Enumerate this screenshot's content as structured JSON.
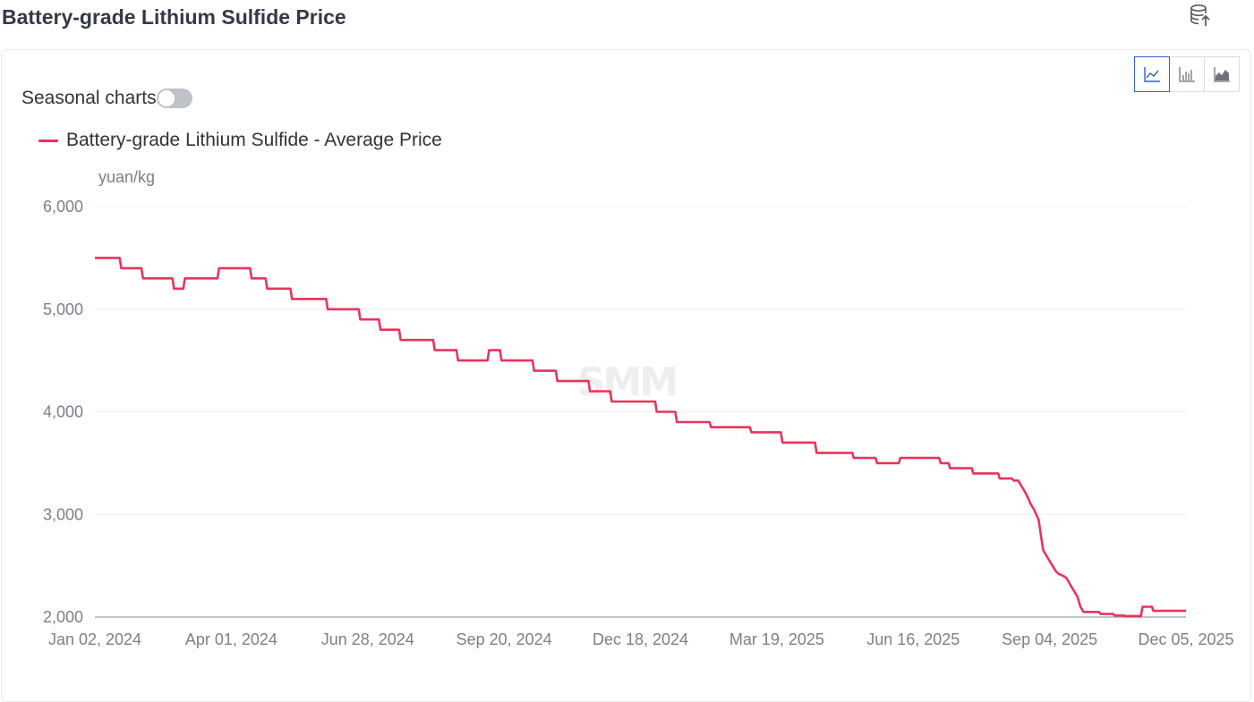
{
  "header": {
    "title": "Battery-grade Lithium Sulfide Price",
    "export_icon": "database-export-icon"
  },
  "toolbar": {
    "seasonal_label": "Seasonal charts",
    "seasonal_on": false,
    "chart_types": [
      {
        "icon": "line-chart-icon",
        "active": true
      },
      {
        "icon": "bar-chart-icon",
        "active": false
      },
      {
        "icon": "area-chart-icon",
        "active": false
      }
    ]
  },
  "colors": {
    "series": "#e8345c",
    "active_border": "#2e62c9",
    "axis_text": "#7b8087",
    "grid": "#ececec"
  },
  "watermark": "SMM",
  "chart_data": {
    "type": "line",
    "unit": "yuan/kg",
    "ylim": [
      2000,
      6000
    ],
    "yticks": [
      2000,
      3000,
      4000,
      5000,
      6000
    ],
    "ytick_labels": [
      "2,000",
      "3,000",
      "4,000",
      "5,000",
      "6,000"
    ],
    "xtick_labels": [
      "Jan 02, 2024",
      "Apr 01, 2024",
      "Jun 28, 2024",
      "Sep 20, 2024",
      "Dec 18, 2024",
      "Mar 19, 2025",
      "Jun 16, 2025",
      "Sep 04, 2025",
      "Dec 05, 2025"
    ],
    "grid": true,
    "legend_position": "top-left",
    "series": [
      {
        "name": "Battery-grade Lithium Sulfide - Average Price",
        "points": [
          [
            "2024-01-02",
            5500
          ],
          [
            "2024-01-18",
            5500
          ],
          [
            "2024-01-19",
            5400
          ],
          [
            "2024-02-01",
            5400
          ],
          [
            "2024-02-02",
            5300
          ],
          [
            "2024-02-21",
            5300
          ],
          [
            "2024-02-22",
            5200
          ],
          [
            "2024-02-28",
            5200
          ],
          [
            "2024-02-29",
            5300
          ],
          [
            "2024-03-21",
            5300
          ],
          [
            "2024-03-22",
            5400
          ],
          [
            "2024-04-11",
            5400
          ],
          [
            "2024-04-12",
            5300
          ],
          [
            "2024-04-21",
            5300
          ],
          [
            "2024-04-22",
            5200
          ],
          [
            "2024-05-07",
            5200
          ],
          [
            "2024-05-08",
            5100
          ],
          [
            "2024-05-30",
            5100
          ],
          [
            "2024-05-31",
            5000
          ],
          [
            "2024-06-20",
            5000
          ],
          [
            "2024-06-21",
            4900
          ],
          [
            "2024-07-03",
            4900
          ],
          [
            "2024-07-04",
            4800
          ],
          [
            "2024-07-16",
            4800
          ],
          [
            "2024-07-17",
            4700
          ],
          [
            "2024-08-07",
            4700
          ],
          [
            "2024-08-08",
            4600
          ],
          [
            "2024-08-22",
            4600
          ],
          [
            "2024-08-23",
            4500
          ],
          [
            "2024-09-11",
            4500
          ],
          [
            "2024-09-12",
            4600
          ],
          [
            "2024-09-19",
            4600
          ],
          [
            "2024-09-20",
            4500
          ],
          [
            "2024-10-10",
            4500
          ],
          [
            "2024-10-11",
            4400
          ],
          [
            "2024-10-25",
            4400
          ],
          [
            "2024-10-26",
            4300
          ],
          [
            "2024-11-15",
            4300
          ],
          [
            "2024-11-16",
            4200
          ],
          [
            "2024-11-29",
            4200
          ],
          [
            "2024-11-30",
            4100
          ],
          [
            "2024-12-28",
            4100
          ],
          [
            "2024-12-29",
            4000
          ],
          [
            "2025-01-10",
            4000
          ],
          [
            "2025-01-11",
            3900
          ],
          [
            "2025-02-01",
            3900
          ],
          [
            "2025-02-02",
            3850
          ],
          [
            "2025-02-27",
            3850
          ],
          [
            "2025-02-28",
            3800
          ],
          [
            "2025-03-19",
            3800
          ],
          [
            "2025-03-20",
            3700
          ],
          [
            "2025-04-10",
            3700
          ],
          [
            "2025-04-11",
            3600
          ],
          [
            "2025-05-04",
            3600
          ],
          [
            "2025-05-05",
            3550
          ],
          [
            "2025-05-19",
            3550
          ],
          [
            "2025-05-20",
            3500
          ],
          [
            "2025-06-03",
            3500
          ],
          [
            "2025-06-04",
            3550
          ],
          [
            "2025-06-29",
            3550
          ],
          [
            "2025-06-30",
            3500
          ],
          [
            "2025-07-05",
            3500
          ],
          [
            "2025-07-06",
            3450
          ],
          [
            "2025-07-20",
            3450
          ],
          [
            "2025-07-21",
            3400
          ],
          [
            "2025-08-06",
            3400
          ],
          [
            "2025-08-07",
            3350
          ],
          [
            "2025-08-15",
            3350
          ],
          [
            "2025-08-16",
            3330
          ],
          [
            "2025-08-19",
            3330
          ],
          [
            "2025-08-24",
            3200
          ],
          [
            "2025-08-27",
            3100
          ],
          [
            "2025-08-29",
            3050
          ],
          [
            "2025-09-01",
            2950
          ],
          [
            "2025-09-04",
            2650
          ],
          [
            "2025-09-06",
            2600
          ],
          [
            "2025-09-08",
            2550
          ],
          [
            "2025-09-10",
            2500
          ],
          [
            "2025-09-12",
            2450
          ],
          [
            "2025-09-14",
            2420
          ],
          [
            "2025-09-17",
            2400
          ],
          [
            "2025-09-19",
            2380
          ],
          [
            "2025-09-22",
            2300
          ],
          [
            "2025-09-26",
            2200
          ],
          [
            "2025-09-28",
            2100
          ],
          [
            "2025-09-30",
            2050
          ],
          [
            "2025-10-10",
            2050
          ],
          [
            "2025-10-11",
            2030
          ],
          [
            "2025-10-19",
            2030
          ],
          [
            "2025-10-20",
            2015
          ],
          [
            "2025-10-26",
            2015
          ],
          [
            "2025-10-27",
            2010
          ],
          [
            "2025-11-06",
            2010
          ],
          [
            "2025-11-07",
            2100
          ],
          [
            "2025-11-13",
            2100
          ],
          [
            "2025-11-14",
            2060
          ],
          [
            "2025-12-05",
            2060
          ]
        ]
      }
    ]
  }
}
